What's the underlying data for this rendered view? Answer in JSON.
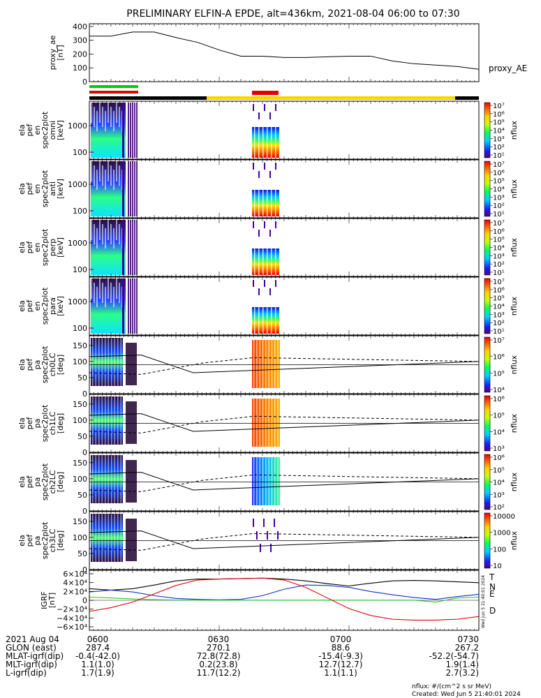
{
  "title": "PRELIMINARY ELFIN-A EPDE, alt=436km, 2021-08-04 06:00 to 07:30",
  "created": "Created: Wed Jun  5 21:40:01 2024",
  "side_stamp": "Wed Jun  5 21:40:01 2024",
  "units_note": "nflux: #/(cm^2 s sr MeV)",
  "colors": {
    "black": "#000000",
    "red": "#e00000",
    "green": "#00cc00",
    "blue": "#0000d0",
    "yellow": "#f5d800",
    "T": "#000000",
    "N": "#1030c0",
    "E": "#22cc22",
    "D": "#dd0000"
  },
  "colorbar_label": "nflux",
  "panels": [
    {
      "id": "proxy-ae",
      "ylabel": [
        "proxy_ae",
        "[nT]"
      ],
      "ticks": [
        "400",
        "300",
        "200",
        "100",
        "0"
      ],
      "right_label": "proxy_AE"
    },
    {
      "id": "omni",
      "ylabel": [
        "ela",
        "pef",
        "en",
        "spec2plot",
        "omni",
        "[keV]"
      ],
      "ticks": [
        "1000",
        "100"
      ],
      "cbar": [
        "10⁷",
        "10⁶",
        "10⁵",
        "10⁴",
        "10³",
        "10²",
        "10¹"
      ]
    },
    {
      "id": "anti",
      "ylabel": [
        "ela",
        "pef",
        "en",
        "spec2plot",
        "anti",
        "[keV]"
      ],
      "ticks": [
        "1000",
        "100"
      ],
      "cbar": [
        "10⁷",
        "10⁶",
        "10⁵",
        "10⁴",
        "10³",
        "10²",
        "10¹"
      ]
    },
    {
      "id": "perp",
      "ylabel": [
        "ela",
        "pef",
        "en",
        "spec2plot",
        "perp",
        "[keV]"
      ],
      "ticks": [
        "1000",
        "100"
      ],
      "cbar": [
        "10⁷",
        "10⁶",
        "10⁵",
        "10⁴",
        "10³",
        "10²",
        "10¹"
      ]
    },
    {
      "id": "para",
      "ylabel": [
        "ela",
        "pef",
        "en",
        "spec2plot",
        "para",
        "[keV]"
      ],
      "ticks": [
        "1000",
        "100"
      ],
      "cbar": [
        "10⁷",
        "10⁶",
        "10⁵",
        "10⁴",
        "10³",
        "10²",
        "10¹"
      ]
    },
    {
      "id": "ch0lc",
      "ylabel": [
        "ela",
        "pef",
        "pa",
        "spec2plot",
        "ch0LC",
        "[deg]"
      ],
      "ticks": [
        "150",
        "100",
        "50",
        "0"
      ],
      "cbar": [
        "10⁷",
        "10⁶",
        "10⁵",
        "10⁴"
      ]
    },
    {
      "id": "ch1lc",
      "ylabel": [
        "ela",
        "pef",
        "pa",
        "spec2plot",
        "ch1LC",
        "[deg]"
      ],
      "ticks": [
        "150",
        "100",
        "50",
        "0"
      ],
      "cbar": [
        "10⁶",
        "10⁵",
        "10⁴",
        "10³"
      ]
    },
    {
      "id": "ch2lc",
      "ylabel": [
        "ela",
        "pef",
        "pa",
        "spec2plot",
        "ch2LC",
        "[deg]"
      ],
      "ticks": [
        "150",
        "100",
        "50",
        "0"
      ],
      "cbar": [
        "10⁶",
        "10⁵",
        "10⁴",
        "10³",
        "10²"
      ]
    },
    {
      "id": "ch3lc",
      "ylabel": [
        "ela",
        "pef",
        "pa",
        "spec2plot",
        "ch3LC",
        "[deg]"
      ],
      "ticks": [
        "150",
        "100",
        "50",
        "0"
      ],
      "cbar": [
        "10000",
        "1000",
        "100",
        "10"
      ]
    },
    {
      "id": "igrf",
      "ylabel": [
        "IGRF",
        "[nT]"
      ],
      "ticks": [
        "6×10⁴",
        "4×10⁴",
        "2×10⁴",
        "0",
        "−2×10⁴",
        "−4×10⁴",
        "−6×10⁴"
      ],
      "legend": [
        "T",
        "N",
        "E",
        "D"
      ]
    }
  ],
  "footer": {
    "rows": [
      {
        "label": "2021 Aug 04",
        "values": [
          "0600",
          "0630",
          "0700",
          "0730"
        ]
      },
      {
        "label": "GLON (east)",
        "values": [
          "287.4",
          "270.1",
          "88.6",
          "267.2"
        ]
      },
      {
        "label": "MLAT-igrf(dip)",
        "values": [
          "-0.4(-42.0)",
          "72.8(72.8)",
          "-15.4(-9.3)",
          "-52.2(-54.7)"
        ]
      },
      {
        "label": "MLT-igrf(dip)",
        "values": [
          "1.1(1.0)",
          "0.2(23.8)",
          "12.7(12.7)",
          "1.9(1.4)"
        ]
      },
      {
        "label": "L-igrf(dip)",
        "values": [
          "1.7(1.9)",
          "11.7(12.2)",
          "1.1(1.1)",
          "2.7(3.2)"
        ]
      }
    ]
  },
  "chart_data": [
    {
      "type": "line",
      "name": "proxy_ae",
      "x_minutes": [
        0,
        5,
        10,
        15,
        20,
        25,
        30,
        35,
        40,
        45,
        50,
        55,
        60,
        65,
        70,
        75,
        80,
        85,
        90
      ],
      "y": [
        330,
        330,
        360,
        360,
        320,
        285,
        230,
        185,
        185,
        175,
        175,
        180,
        185,
        185,
        150,
        130,
        120,
        110,
        90
      ],
      "ylim": [
        0,
        420
      ]
    },
    {
      "type": "line",
      "name": "IGRF",
      "x_minutes": [
        0,
        5,
        10,
        15,
        20,
        25,
        30,
        35,
        40,
        45,
        50,
        55,
        60,
        65,
        70,
        75,
        80,
        85,
        90
      ],
      "ylim": [
        -65000,
        65000
      ],
      "series": [
        {
          "key": "T",
          "y": [
            25000,
            22000,
            25000,
            33000,
            42000,
            46000,
            46000,
            47000,
            48000,
            46000,
            42000,
            36000,
            31000,
            37000,
            42000,
            43000,
            42000,
            40000,
            38000
          ]
        },
        {
          "key": "N",
          "y": [
            18000,
            22000,
            18000,
            10000,
            4000,
            2000,
            1000,
            2000,
            10000,
            24000,
            33000,
            32000,
            28000,
            19000,
            12000,
            6000,
            2000,
            8000,
            13000
          ]
        },
        {
          "key": "E",
          "y": [
            7000,
            5000,
            3000,
            1500,
            500,
            300,
            300,
            300,
            300,
            300,
            300,
            300,
            300,
            300,
            300,
            300,
            -4000,
            5000,
            7000
          ]
        },
        {
          "key": "D",
          "y": [
            -24000,
            -16000,
            -4000,
            14000,
            32000,
            44000,
            46000,
            47000,
            48000,
            44000,
            28000,
            5000,
            -18000,
            -33000,
            -41000,
            -43000,
            -43000,
            -41000,
            -35000
          ]
        }
      ]
    }
  ]
}
